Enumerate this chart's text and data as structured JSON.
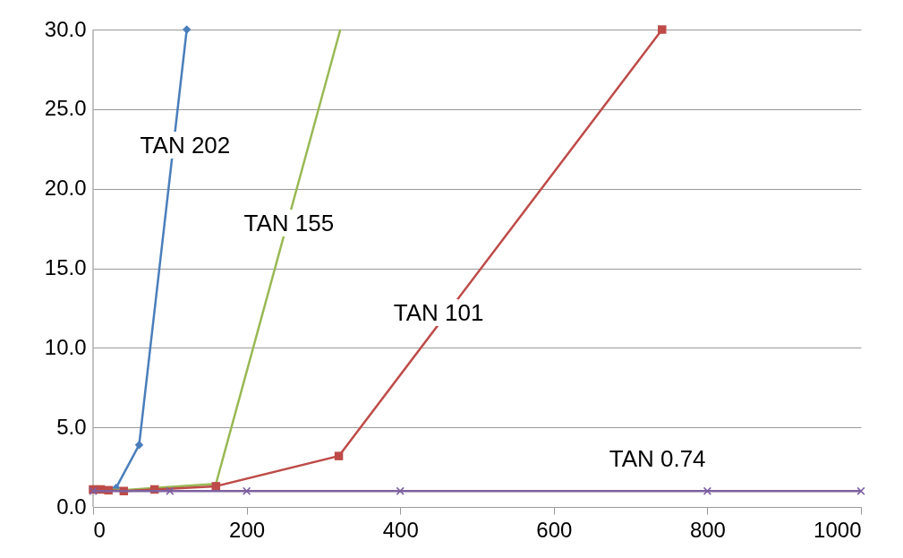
{
  "chart_data": {
    "type": "line",
    "xlim": [
      0,
      1000
    ],
    "ylim": [
      0,
      30
    ],
    "xticks": [
      0,
      200,
      400,
      600,
      800,
      1000
    ],
    "yticks": [
      {
        "value": 0,
        "label": "0.0"
      },
      {
        "value": 5,
        "label": "5.0"
      },
      {
        "value": 10,
        "label": "10.0"
      },
      {
        "value": 15,
        "label": "15.0"
      },
      {
        "value": 20,
        "label": "20.0"
      },
      {
        "value": 25,
        "label": "25.0"
      },
      {
        "value": 30,
        "label": "30.0"
      }
    ],
    "grid": "y",
    "series": [
      {
        "name": "TAN 202",
        "color": "#4a7ebb",
        "marker": "diamond",
        "x": [
          0,
          10,
          20,
          30,
          60,
          122
        ],
        "values": [
          1.1,
          1.1,
          null,
          1.2,
          3.9,
          30
        ]
      },
      {
        "name": "TAN 155",
        "color": "#98b954",
        "marker": "none",
        "x": [
          0,
          10,
          20,
          40,
          80,
          160,
          322
        ],
        "values": [
          1.1,
          1.1,
          1.1,
          1.05,
          1.2,
          1.45,
          30
        ]
      },
      {
        "name": "TAN 101",
        "color": "#be4b48",
        "marker": "square",
        "x": [
          0,
          10,
          20,
          40,
          80,
          160,
          320,
          741
        ],
        "values": [
          1.1,
          1.1,
          1.05,
          1.0,
          1.1,
          1.3,
          3.2,
          30
        ]
      },
      {
        "name": "TAN 0.74",
        "color": "#7d60a0",
        "marker": "cross",
        "x": [
          0,
          100,
          200,
          400,
          800,
          1000
        ],
        "values": [
          1.0,
          1.0,
          1.0,
          1.0,
          1.0,
          1.0
        ]
      }
    ]
  }
}
